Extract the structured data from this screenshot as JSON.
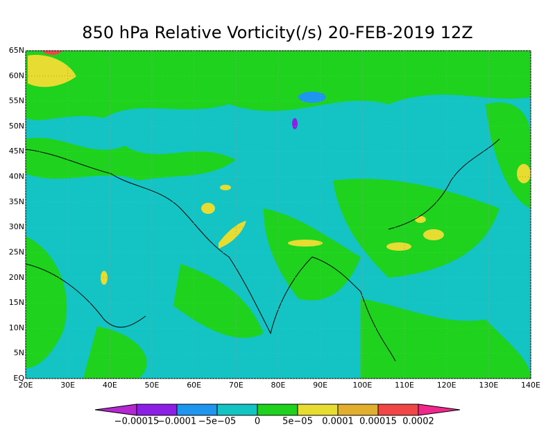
{
  "title": "850 hPa Relative Vorticity(/s) 20-FEB-2019 12Z",
  "map": {
    "lon_ticks": [
      {
        "value": 20,
        "label": "20E"
      },
      {
        "value": 30,
        "label": "30E"
      },
      {
        "value": 40,
        "label": "40E"
      },
      {
        "value": 50,
        "label": "50E"
      },
      {
        "value": 60,
        "label": "60E"
      },
      {
        "value": 70,
        "label": "70E"
      },
      {
        "value": 80,
        "label": "80E"
      },
      {
        "value": 90,
        "label": "90E"
      },
      {
        "value": 100,
        "label": "100E"
      },
      {
        "value": 110,
        "label": "110E"
      },
      {
        "value": 120,
        "label": "120E"
      },
      {
        "value": 130,
        "label": "130E"
      },
      {
        "value": 140,
        "label": "140E"
      }
    ],
    "lat_ticks": [
      {
        "value": 0,
        "label": "EQ"
      },
      {
        "value": 5,
        "label": "5N"
      },
      {
        "value": 10,
        "label": "10N"
      },
      {
        "value": 15,
        "label": "15N"
      },
      {
        "value": 20,
        "label": "20N"
      },
      {
        "value": 25,
        "label": "25N"
      },
      {
        "value": 30,
        "label": "30N"
      },
      {
        "value": 35,
        "label": "35N"
      },
      {
        "value": 40,
        "label": "40N"
      },
      {
        "value": 45,
        "label": "45N"
      },
      {
        "value": 50,
        "label": "50N"
      },
      {
        "value": 55,
        "label": "55N"
      },
      {
        "value": 60,
        "label": "60N"
      },
      {
        "value": 65,
        "label": "65N"
      }
    ],
    "lonlim": [
      20,
      140
    ],
    "latlim": [
      0,
      65
    ]
  },
  "colorbar": {
    "levels": [
      {
        "value": -0.00015,
        "label": "−0.00015"
      },
      {
        "value": -0.0001,
        "label": "−0.0001"
      },
      {
        "value": -5e-05,
        "label": "−5e−05"
      },
      0,
      {
        "value": 5e-05,
        "label": "5e−05"
      },
      {
        "value": 0.0001,
        "label": "0.0001"
      },
      {
        "value": 0.00015,
        "label": "0.00015"
      },
      {
        "value": 0.0002,
        "label": "0.0002"
      }
    ],
    "colors": [
      "#b428d2",
      "#8c1ee6",
      "#1e96f0",
      "#14c3c3",
      "#1ed21e",
      "#e6dc32",
      "#e1af2d",
      "#f04646",
      "#f0288c"
    ]
  }
}
